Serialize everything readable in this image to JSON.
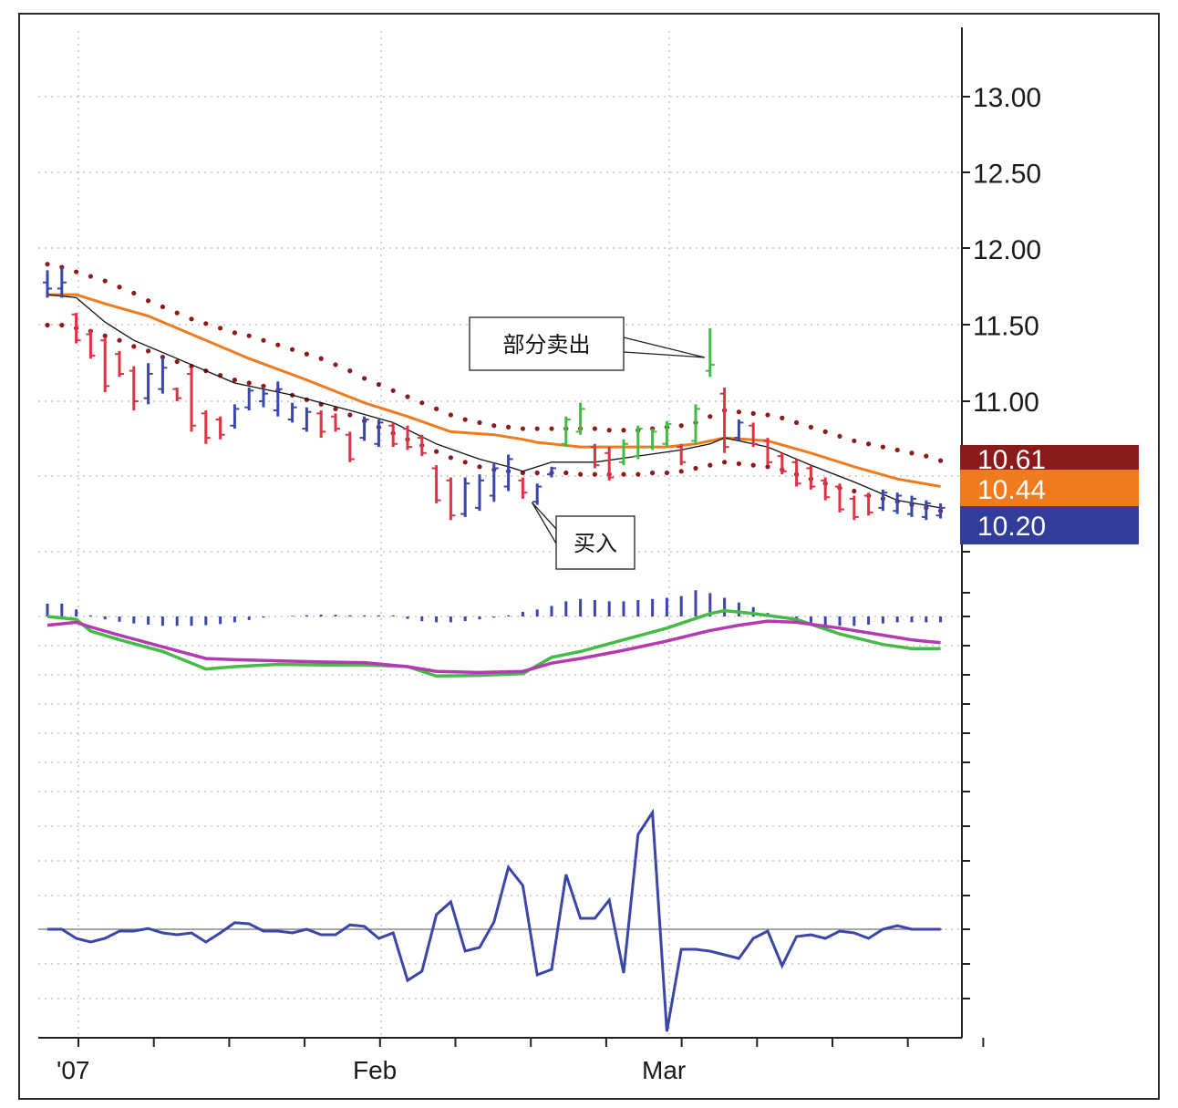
{
  "chart_data": [
    {
      "type": "ohlc-bar",
      "panel": "price",
      "y_ticks": [
        "11.00",
        "11.50",
        "12.00",
        "12.50",
        "13.00"
      ],
      "ylim": [
        10.05,
        13.55
      ],
      "x_labels": [
        "'07",
        "Feb",
        "Mar"
      ],
      "grid": true,
      "bars": [
        {
          "high": 11.86,
          "low": 11.68,
          "open": 11.78,
          "close": 11.74,
          "color": "#3a46a8"
        },
        {
          "high": 11.88,
          "low": 11.68,
          "open": 11.74,
          "close": 11.78,
          "color": "#3a46a8"
        },
        {
          "high": 11.58,
          "low": 11.38,
          "open": 11.57,
          "close": 11.4,
          "color": "#dd3344"
        },
        {
          "high": 11.47,
          "low": 11.28,
          "open": 11.44,
          "close": 11.3,
          "color": "#dd3344"
        },
        {
          "high": 11.42,
          "low": 11.06,
          "open": 11.4,
          "close": 11.1,
          "color": "#dd3344"
        },
        {
          "high": 11.33,
          "low": 11.16,
          "open": 11.31,
          "close": 11.18,
          "color": "#dd3344"
        },
        {
          "high": 11.23,
          "low": 10.94,
          "open": 11.2,
          "close": 11.0,
          "color": "#dd3344"
        },
        {
          "high": 11.25,
          "low": 10.98,
          "open": 11.02,
          "close": 11.18,
          "color": "#3a46a8"
        },
        {
          "high": 11.29,
          "low": 11.05,
          "open": 11.08,
          "close": 11.22,
          "color": "#3a46a8"
        },
        {
          "high": 11.09,
          "low": 11.0,
          "open": 11.08,
          "close": 11.02,
          "color": "#dd3344"
        },
        {
          "high": 11.22,
          "low": 10.8,
          "open": 11.18,
          "close": 10.84,
          "color": "#dd3344"
        },
        {
          "high": 10.94,
          "low": 10.72,
          "open": 10.92,
          "close": 10.76,
          "color": "#dd3344"
        },
        {
          "high": 10.9,
          "low": 10.75,
          "open": 10.88,
          "close": 10.78,
          "color": "#dd3344"
        },
        {
          "high": 10.98,
          "low": 10.82,
          "open": 10.84,
          "close": 10.95,
          "color": "#3a46a8"
        },
        {
          "high": 11.09,
          "low": 10.94,
          "open": 10.96,
          "close": 11.07,
          "color": "#3a46a8"
        },
        {
          "high": 11.08,
          "low": 10.96,
          "open": 11.0,
          "close": 11.05,
          "color": "#3a46a8"
        },
        {
          "high": 11.13,
          "low": 10.9,
          "open": 10.94,
          "close": 11.08,
          "color": "#3a46a8"
        },
        {
          "high": 10.99,
          "low": 10.86,
          "open": 10.88,
          "close": 10.96,
          "color": "#3a46a8"
        },
        {
          "high": 10.96,
          "low": 10.8,
          "open": 10.82,
          "close": 10.93,
          "color": "#3a46a8"
        },
        {
          "high": 10.94,
          "low": 10.76,
          "open": 10.92,
          "close": 10.8,
          "color": "#dd3344"
        },
        {
          "high": 10.92,
          "low": 10.8,
          "open": 10.9,
          "close": 10.82,
          "color": "#dd3344"
        },
        {
          "high": 10.8,
          "low": 10.6,
          "open": 10.78,
          "close": 10.62,
          "color": "#dd3344"
        },
        {
          "high": 10.9,
          "low": 10.74,
          "open": 10.76,
          "close": 10.88,
          "color": "#3a46a8"
        },
        {
          "high": 10.88,
          "low": 10.7,
          "open": 10.72,
          "close": 10.86,
          "color": "#3a46a8"
        },
        {
          "high": 10.86,
          "low": 10.7,
          "open": 10.84,
          "close": 10.72,
          "color": "#dd3344"
        },
        {
          "high": 10.84,
          "low": 10.68,
          "open": 10.82,
          "close": 10.7,
          "color": "#dd3344"
        },
        {
          "high": 10.78,
          "low": 10.64,
          "open": 10.76,
          "close": 10.66,
          "color": "#dd3344"
        },
        {
          "high": 10.58,
          "low": 10.33,
          "open": 10.56,
          "close": 10.35,
          "color": "#dd3344"
        },
        {
          "high": 10.5,
          "low": 10.22,
          "open": 10.48,
          "close": 10.25,
          "color": "#dd3344"
        },
        {
          "high": 10.5,
          "low": 10.24,
          "open": 10.26,
          "close": 10.46,
          "color": "#3a46a8"
        },
        {
          "high": 10.52,
          "low": 10.28,
          "open": 10.3,
          "close": 10.48,
          "color": "#3a46a8"
        },
        {
          "high": 10.6,
          "low": 10.34,
          "open": 10.38,
          "close": 10.56,
          "color": "#3a46a8"
        },
        {
          "high": 10.65,
          "low": 10.41,
          "open": 10.44,
          "close": 10.62,
          "color": "#3a46a8"
        },
        {
          "high": 10.5,
          "low": 10.36,
          "open": 10.48,
          "close": 10.4,
          "color": "#dd3344"
        },
        {
          "high": 10.46,
          "low": 10.32,
          "open": 10.34,
          "close": 10.44,
          "color": "#3a46a8"
        },
        {
          "high": 10.57,
          "low": 10.5,
          "open": 10.52,
          "close": 10.56,
          "color": "#3a46a8"
        },
        {
          "high": 10.9,
          "low": 10.7,
          "open": 10.72,
          "close": 10.88,
          "color": "#44bb44"
        },
        {
          "high": 10.99,
          "low": 10.78,
          "open": 10.8,
          "close": 10.95,
          "color": "#44bb44"
        },
        {
          "high": 10.72,
          "low": 10.56,
          "open": 10.7,
          "close": 10.58,
          "color": "#dd3344"
        },
        {
          "high": 10.7,
          "low": 10.48,
          "open": 10.66,
          "close": 10.5,
          "color": "#dd3344"
        },
        {
          "high": 10.75,
          "low": 10.58,
          "open": 10.6,
          "close": 10.72,
          "color": "#44bb44"
        },
        {
          "high": 10.84,
          "low": 10.62,
          "open": 10.64,
          "close": 10.82,
          "color": "#44bb44"
        },
        {
          "high": 10.82,
          "low": 10.68,
          "open": 10.7,
          "close": 10.8,
          "color": "#44bb44"
        },
        {
          "high": 10.87,
          "low": 10.7,
          "open": 10.72,
          "close": 10.85,
          "color": "#44bb44"
        },
        {
          "high": 10.72,
          "low": 10.58,
          "open": 10.7,
          "close": 10.6,
          "color": "#dd3344"
        },
        {
          "high": 10.98,
          "low": 10.72,
          "open": 10.74,
          "close": 10.95,
          "color": "#44bb44"
        },
        {
          "high": 11.48,
          "low": 11.16,
          "open": 11.2,
          "close": 11.24,
          "color": "#44bb44"
        },
        {
          "high": 11.09,
          "low": 10.66,
          "open": 11.05,
          "close": 10.7,
          "color": "#dd3344"
        },
        {
          "high": 10.88,
          "low": 10.74,
          "open": 10.76,
          "close": 10.86,
          "color": "#3a46a8"
        },
        {
          "high": 10.86,
          "low": 10.7,
          "open": 10.84,
          "close": 10.72,
          "color": "#dd3344"
        },
        {
          "high": 10.76,
          "low": 10.58,
          "open": 10.74,
          "close": 10.6,
          "color": "#dd3344"
        },
        {
          "high": 10.66,
          "low": 10.52,
          "open": 10.64,
          "close": 10.54,
          "color": "#dd3344"
        },
        {
          "high": 10.62,
          "low": 10.44,
          "open": 10.6,
          "close": 10.46,
          "color": "#dd3344"
        },
        {
          "high": 10.58,
          "low": 10.42,
          "open": 10.56,
          "close": 10.44,
          "color": "#dd3344"
        },
        {
          "high": 10.5,
          "low": 10.35,
          "open": 10.48,
          "close": 10.37,
          "color": "#dd3344"
        },
        {
          "high": 10.46,
          "low": 10.27,
          "open": 10.44,
          "close": 10.29,
          "color": "#dd3344"
        },
        {
          "high": 10.38,
          "low": 10.22,
          "open": 10.36,
          "close": 10.24,
          "color": "#dd3344"
        },
        {
          "high": 10.4,
          "low": 10.25,
          "open": 10.38,
          "close": 10.27,
          "color": "#dd3344"
        },
        {
          "high": 10.42,
          "low": 10.28,
          "open": 10.3,
          "close": 10.4,
          "color": "#3a46a8"
        },
        {
          "high": 10.4,
          "low": 10.26,
          "open": 10.28,
          "close": 10.38,
          "color": "#3a46a8"
        },
        {
          "high": 10.38,
          "low": 10.24,
          "open": 10.26,
          "close": 10.36,
          "color": "#3a46a8"
        },
        {
          "high": 10.35,
          "low": 10.22,
          "open": 10.24,
          "close": 10.33,
          "color": "#3a46a8"
        },
        {
          "high": 10.33,
          "low": 10.23,
          "open": 10.25,
          "close": 10.3,
          "color": "#3a46a8"
        }
      ],
      "envelope_top": [
        11.9,
        11.88,
        11.85,
        11.82,
        11.79,
        11.75,
        11.71,
        11.66,
        11.62,
        11.58,
        11.54,
        11.51,
        11.48,
        11.45,
        11.43,
        11.4,
        11.37,
        11.34,
        11.31,
        11.28,
        11.24,
        11.2,
        11.15,
        11.11,
        11.07,
        11.03,
        10.99,
        10.95,
        10.91,
        10.88,
        10.86,
        10.84,
        10.83,
        10.82,
        10.82,
        10.82,
        10.82,
        10.82,
        10.82,
        10.81,
        10.81,
        10.81,
        10.82,
        10.83,
        10.84,
        10.86,
        10.9,
        10.94,
        10.93,
        10.92,
        10.91,
        10.89,
        10.86,
        10.83,
        10.8,
        10.77,
        10.74,
        10.72,
        10.7,
        10.68,
        10.66,
        10.64,
        10.61
      ],
      "envelope_bottom": [
        11.5,
        11.5,
        11.48,
        11.46,
        11.43,
        11.4,
        11.36,
        11.33,
        11.29,
        11.26,
        11.23,
        11.2,
        11.17,
        11.14,
        11.12,
        11.1,
        11.07,
        11.04,
        11.01,
        10.98,
        10.95,
        10.91,
        10.87,
        10.83,
        10.79,
        10.75,
        10.71,
        10.67,
        10.63,
        10.6,
        10.57,
        10.55,
        10.54,
        10.53,
        10.53,
        10.53,
        10.53,
        10.52,
        10.52,
        10.52,
        10.52,
        10.52,
        10.53,
        10.53,
        10.54,
        10.56,
        10.58,
        10.6,
        10.59,
        10.58,
        10.57,
        10.55,
        10.52,
        10.49,
        10.46,
        10.43,
        10.41,
        10.38,
        10.36,
        10.34,
        10.32,
        10.3,
        10.28
      ],
      "series": [
        {
          "name": "",
          "color": "#f07a1e",
          "x": [
            0,
            2,
            4,
            7,
            10,
            14,
            18,
            22,
            25,
            28,
            31,
            33,
            34,
            37,
            40,
            43,
            45,
            47,
            50,
            53,
            56,
            59,
            62
          ],
          "values": [
            11.7,
            11.7,
            11.64,
            11.56,
            11.44,
            11.28,
            11.14,
            10.99,
            10.9,
            10.8,
            10.78,
            10.75,
            10.73,
            10.7,
            10.7,
            10.7,
            10.72,
            10.76,
            10.74,
            10.66,
            10.57,
            10.49,
            10.44
          ]
        },
        {
          "name": "",
          "color": "#111111",
          "x": [
            0,
            2,
            4,
            6,
            9,
            13,
            17,
            21,
            24,
            27,
            30,
            32,
            33,
            35,
            38,
            41,
            44,
            46,
            47,
            50,
            53,
            56,
            59,
            62
          ],
          "values": [
            11.7,
            11.68,
            11.52,
            11.4,
            11.28,
            11.12,
            11.04,
            10.94,
            10.86,
            10.72,
            10.62,
            10.57,
            10.54,
            10.6,
            10.6,
            10.64,
            10.68,
            10.72,
            10.76,
            10.7,
            10.58,
            10.47,
            10.35,
            10.3
          ]
        }
      ],
      "badges": [
        {
          "label": "10.61",
          "color": "#8b1a1a"
        },
        {
          "label": "10.44",
          "color": "#f07a1e"
        },
        {
          "label": "10.20",
          "color": "#323c9a"
        }
      ],
      "annotations": [
        {
          "label": "部分卖出",
          "bar": 46
        },
        {
          "label": "买入",
          "bar": 33
        }
      ]
    },
    {
      "type": "line",
      "panel": "macd",
      "histogram": [
        0.22,
        0.22,
        0.12,
        0.02,
        -0.05,
        -0.09,
        -0.12,
        -0.14,
        -0.16,
        -0.16,
        -0.16,
        -0.15,
        -0.13,
        -0.1,
        -0.06,
        -0.02,
        0.0,
        0.01,
        0.02,
        0.03,
        0.03,
        0.02,
        0.02,
        0.02,
        0.02,
        -0.04,
        -0.08,
        -0.1,
        -0.1,
        -0.08,
        -0.05,
        -0.02,
        0.02,
        0.08,
        0.12,
        0.18,
        0.26,
        0.3,
        0.28,
        0.26,
        0.26,
        0.28,
        0.3,
        0.32,
        0.35,
        0.45,
        0.4,
        0.32,
        0.24,
        0.16,
        0.06,
        -0.04,
        -0.1,
        -0.14,
        -0.16,
        -0.16,
        -0.16,
        -0.14,
        -0.12,
        -0.1,
        -0.1,
        -0.1,
        -0.1
      ],
      "series": [
        {
          "name": "",
          "color": "#44bb44",
          "x": [
            0,
            2,
            3,
            5,
            8,
            11,
            13,
            16,
            19,
            22,
            25,
            27,
            30,
            33,
            35,
            37,
            40,
            43,
            46,
            47,
            49,
            52,
            55,
            58,
            60,
            62
          ],
          "values": [
            0.0,
            -0.05,
            -0.25,
            -0.4,
            -0.6,
            -0.9,
            -0.86,
            -0.82,
            -0.83,
            -0.83,
            -0.86,
            -1.02,
            -1.01,
            -0.98,
            -0.7,
            -0.6,
            -0.4,
            -0.2,
            0.05,
            0.1,
            0.05,
            -0.05,
            -0.3,
            -0.48,
            -0.55,
            -0.55
          ]
        },
        {
          "name": "",
          "color": "#b33ab3",
          "x": [
            0,
            2,
            3,
            5,
            8,
            11,
            13,
            16,
            19,
            22,
            25,
            27,
            30,
            33,
            35,
            37,
            40,
            43,
            46,
            48,
            50,
            52,
            55,
            58,
            60,
            62
          ],
          "values": [
            -0.15,
            -0.1,
            -0.18,
            -0.32,
            -0.52,
            -0.72,
            -0.74,
            -0.76,
            -0.78,
            -0.79,
            -0.86,
            -0.94,
            -0.96,
            -0.94,
            -0.8,
            -0.72,
            -0.58,
            -0.42,
            -0.24,
            -0.15,
            -0.08,
            -0.1,
            -0.2,
            -0.32,
            -0.4,
            -0.45
          ]
        }
      ]
    },
    {
      "type": "line",
      "panel": "oscillator",
      "series": [
        {
          "name": "",
          "color": "#3a46a8",
          "x": [
            0,
            1,
            2,
            3,
            4,
            5,
            6,
            7,
            8,
            9,
            10,
            11,
            12,
            13,
            14,
            15,
            16,
            17,
            18,
            19,
            20,
            21,
            22,
            23,
            24,
            25,
            26,
            27,
            28,
            29,
            30,
            31,
            32,
            33,
            34,
            35,
            36,
            37,
            38,
            39,
            40,
            41,
            42,
            43,
            44,
            45,
            46,
            47,
            48,
            49,
            50,
            51,
            52,
            53,
            54,
            55,
            56,
            57,
            58,
            59,
            60,
            61,
            62
          ],
          "values": [
            0.0,
            0.0,
            -0.25,
            -0.35,
            -0.25,
            -0.05,
            -0.05,
            0.02,
            -0.1,
            -0.15,
            -0.1,
            -0.35,
            -0.1,
            0.18,
            0.15,
            -0.05,
            -0.05,
            -0.1,
            -0.0,
            -0.15,
            -0.15,
            0.12,
            0.08,
            -0.25,
            -0.1,
            -1.4,
            -1.15,
            0.4,
            0.75,
            -0.6,
            -0.5,
            0.2,
            1.7,
            1.2,
            -1.25,
            -1.1,
            1.5,
            0.3,
            0.3,
            0.8,
            -1.2,
            2.6,
            3.2,
            -2.8,
            -0.55,
            -0.55,
            -0.6,
            -0.7,
            -0.8,
            -0.25,
            -0.05,
            -1.0,
            -0.2,
            -0.15,
            -0.25,
            -0.05,
            -0.1,
            -0.25,
            -0.0,
            0.1,
            0.0,
            0.0,
            0.0
          ]
        }
      ]
    }
  ]
}
